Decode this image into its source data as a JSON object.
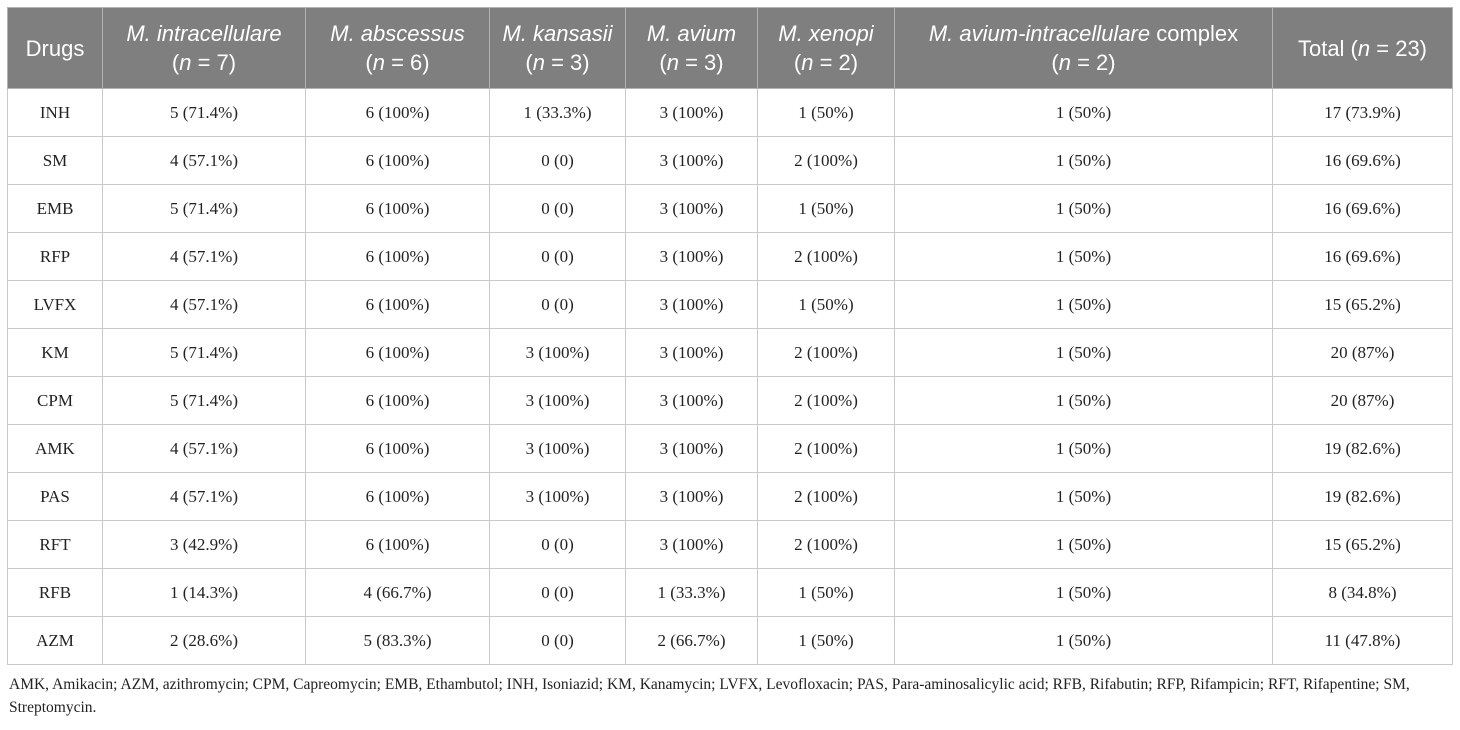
{
  "table": {
    "headers": [
      {
        "species": "",
        "plain": "Drugs",
        "n_label": ""
      },
      {
        "species": "M. intracellulare",
        "plain": "",
        "n_label": "(n = 7)"
      },
      {
        "species": "M. abscessus",
        "plain": "",
        "n_label": "(n = 6)"
      },
      {
        "species": "M. kansasii",
        "plain": "",
        "n_label": "(n = 3)"
      },
      {
        "species": "M. avium",
        "plain": "",
        "n_label": "(n = 3)"
      },
      {
        "species": "M. xenopi",
        "plain": "",
        "n_label": "(n = 2)"
      },
      {
        "species": "M. avium-intracellulare",
        "plain": " complex",
        "n_label": "(n = 2)"
      },
      {
        "species": "",
        "plain": "Total (n = 23)",
        "n_label": ""
      }
    ],
    "rows": [
      [
        "INH",
        "5 (71.4%)",
        "6 (100%)",
        "1 (33.3%)",
        "3 (100%)",
        "1 (50%)",
        "1 (50%)",
        "17 (73.9%)"
      ],
      [
        "SM",
        "4 (57.1%)",
        "6 (100%)",
        "0 (0)",
        "3 (100%)",
        "2 (100%)",
        "1 (50%)",
        "16 (69.6%)"
      ],
      [
        "EMB",
        "5 (71.4%)",
        "6 (100%)",
        "0 (0)",
        "3 (100%)",
        "1 (50%)",
        "1 (50%)",
        "16 (69.6%)"
      ],
      [
        "RFP",
        "4 (57.1%)",
        "6 (100%)",
        "0 (0)",
        "3 (100%)",
        "2 (100%)",
        "1 (50%)",
        "16 (69.6%)"
      ],
      [
        "LVFX",
        "4 (57.1%)",
        "6 (100%)",
        "0 (0)",
        "3 (100%)",
        "1 (50%)",
        "1 (50%)",
        "15 (65.2%)"
      ],
      [
        "KM",
        "5 (71.4%)",
        "6 (100%)",
        "3 (100%)",
        "3 (100%)",
        "2 (100%)",
        "1 (50%)",
        "20 (87%)"
      ],
      [
        "CPM",
        "5 (71.4%)",
        "6 (100%)",
        "3 (100%)",
        "3 (100%)",
        "2 (100%)",
        "1 (50%)",
        "20 (87%)"
      ],
      [
        "AMK",
        "4 (57.1%)",
        "6 (100%)",
        "3 (100%)",
        "3 (100%)",
        "2 (100%)",
        "1 (50%)",
        "19 (82.6%)"
      ],
      [
        "PAS",
        "4 (57.1%)",
        "6 (100%)",
        "3 (100%)",
        "3 (100%)",
        "2 (100%)",
        "1 (50%)",
        "19 (82.6%)"
      ],
      [
        "RFT",
        "3 (42.9%)",
        "6 (100%)",
        "0 (0)",
        "3 (100%)",
        "2 (100%)",
        "1 (50%)",
        "15 (65.2%)"
      ],
      [
        "RFB",
        "1 (14.3%)",
        "4 (66.7%)",
        "0 (0)",
        "1 (33.3%)",
        "1 (50%)",
        "1 (50%)",
        "8 (34.8%)"
      ],
      [
        "AZM",
        "2 (28.6%)",
        "5 (83.3%)",
        "0 (0)",
        "2 (66.7%)",
        "1 (50%)",
        "1 (50%)",
        "11 (47.8%)"
      ]
    ]
  },
  "footnote": "AMK, Amikacin; AZM, azithromycin; CPM, Capreomycin; EMB, Ethambutol; INH, Isoniazid; KM, Kanamycin; LVFX, Levofloxacin; PAS, Para-aminosalicylic acid; RFB, Rifabutin; RFP, Rifampicin; RFT, Rifapentine; SM, Streptomycin.",
  "colors": {
    "header_bg": "#7f7f7f",
    "header_text": "#ffffff",
    "border": "#c9c9c9"
  }
}
